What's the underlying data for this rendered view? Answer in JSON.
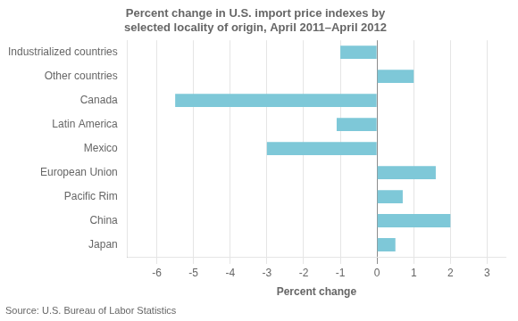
{
  "chart_data": {
    "type": "bar",
    "orientation": "horizontal",
    "title": "Percent change in U.S. import price indexes by\nselected locality of origin, April 2011–April 2012",
    "categories": [
      "Japan",
      "China",
      "Pacific Rim",
      "European Union",
      "Mexico",
      "Latin America",
      "Canada",
      "Other countries",
      "Industrialized countries"
    ],
    "values": [
      0.5,
      2.0,
      0.7,
      1.6,
      -3.0,
      -1.1,
      -5.5,
      1.0,
      -1.0
    ],
    "color": "#7ec8d8",
    "xlabel": "Percent change",
    "xlim": [
      -6.8,
      3.5
    ],
    "xticks": [
      -6,
      -5,
      -4,
      -3,
      -2,
      -1,
      0,
      1,
      2,
      3
    ],
    "grid": true,
    "source": "Source: U.S. Bureau of Labor Statistics"
  }
}
